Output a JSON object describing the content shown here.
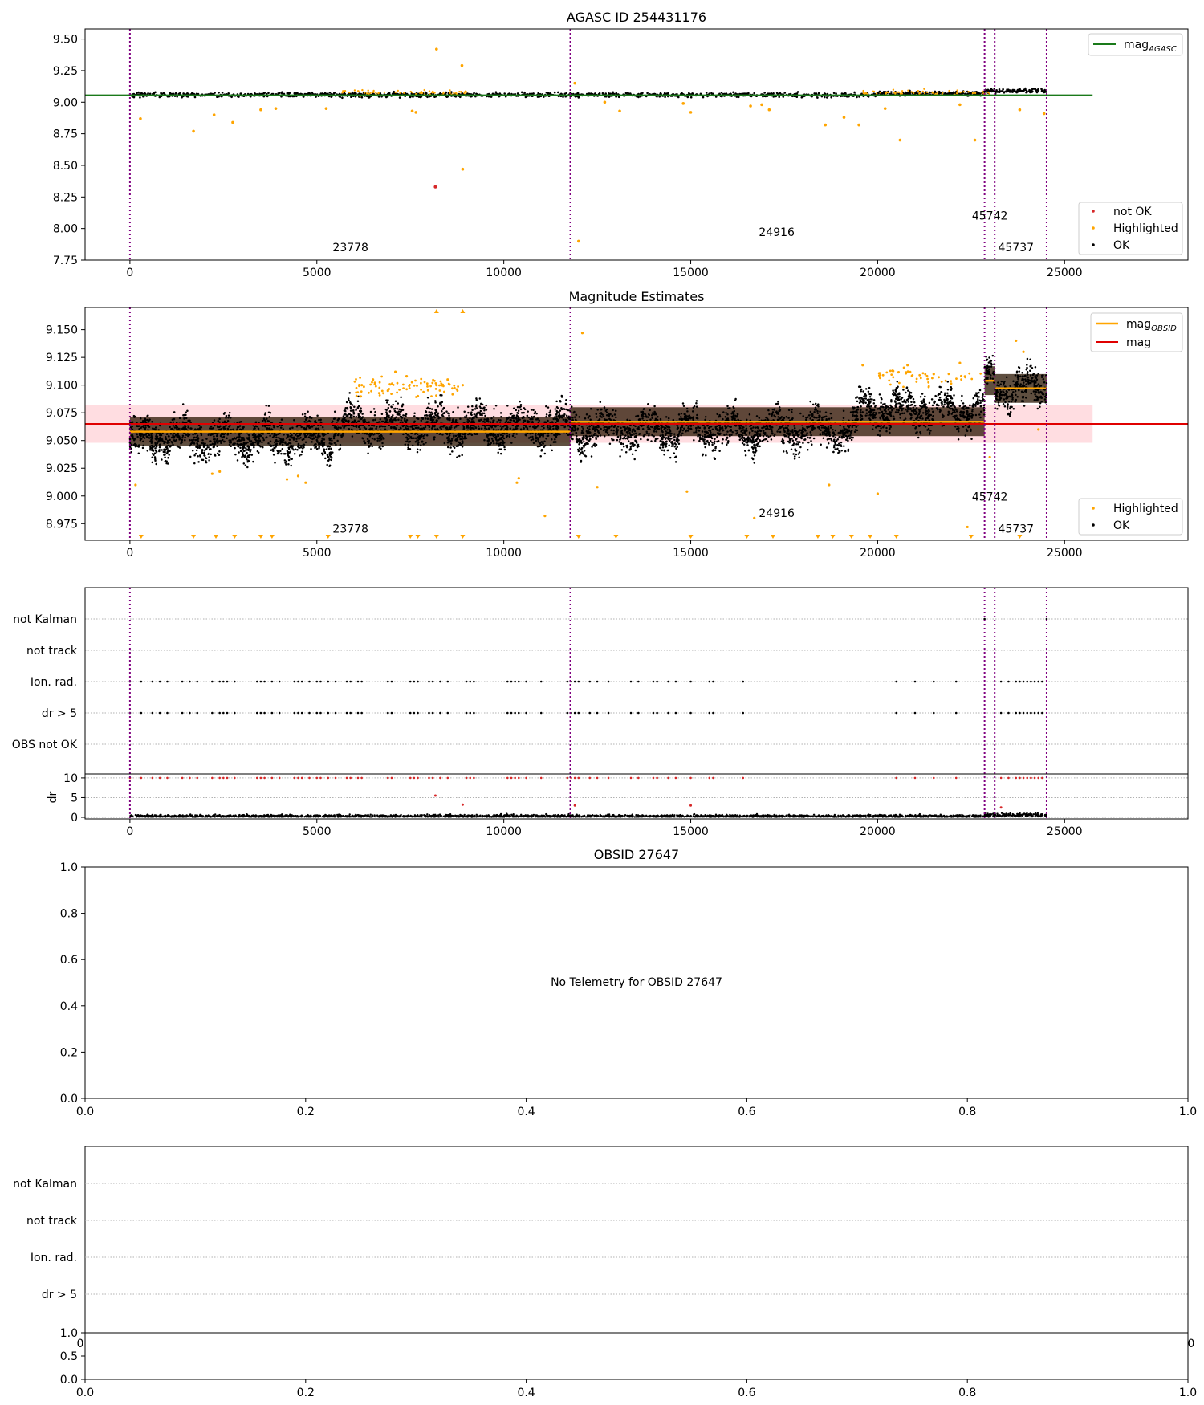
{
  "chart_data": [
    {
      "type": "scatter",
      "title": "AGASC ID 254431176",
      "x_ticks": [
        0,
        5000,
        10000,
        15000,
        20000,
        25000
      ],
      "y_ticks": [
        "7.75",
        "8.00",
        "8.25",
        "8.50",
        "8.75",
        "9.00",
        "9.25",
        "9.50"
      ],
      "xlim": [
        -1200,
        28300
      ],
      "ylim": [
        7.75,
        9.58
      ],
      "obs_boundaries": [
        0,
        11780,
        22860,
        23130,
        24520
      ],
      "obsid_labels": [
        {
          "text": "23778",
          "x": 5900,
          "y": 7.82
        },
        {
          "text": "24916",
          "x": 17300,
          "y": 7.94
        },
        {
          "text": "45742",
          "x": 23000,
          "y": 8.07
        },
        {
          "text": "45737",
          "x": 23700,
          "y": 7.82
        }
      ],
      "mag_agasc": 9.055,
      "series": [
        {
          "name": "not OK",
          "color": "#d62728",
          "x": [
            8170
          ],
          "y": [
            8.33
          ]
        },
        {
          "name": "Highlighted",
          "color": "#ffa500",
          "x": [
            280,
            1700,
            2250,
            2750,
            3500,
            3900,
            5250,
            7550,
            7650,
            8200,
            8880,
            8900,
            11900,
            12000,
            12700,
            13100,
            14800,
            15000,
            16600,
            16900,
            17100,
            18600,
            19100,
            19500,
            20200,
            20600,
            22200,
            22600,
            23800,
            24450
          ],
          "y": [
            8.87,
            8.77,
            8.9,
            8.84,
            8.94,
            8.95,
            8.95,
            8.93,
            8.92,
            9.42,
            9.29,
            8.47,
            9.15,
            7.9,
            9.0,
            8.93,
            8.99,
            8.92,
            8.97,
            8.98,
            8.94,
            8.82,
            8.88,
            8.82,
            8.95,
            8.7,
            8.98,
            8.7,
            8.94,
            8.91
          ]
        },
        {
          "name": "OK",
          "color": "#000000"
        }
      ],
      "legend": {
        "position": "lower-right",
        "items": [
          "not OK",
          "Highlighted",
          "OK"
        ]
      },
      "line_legend": {
        "position": "upper-right",
        "items": [
          "mag_AGASC"
        ]
      }
    },
    {
      "type": "scatter",
      "title": "Magnitude Estimates",
      "x_ticks": [
        0,
        5000,
        10000,
        15000,
        20000,
        25000
      ],
      "y_ticks": [
        "8.975",
        "9.000",
        "9.025",
        "9.050",
        "9.075",
        "9.100",
        "9.125",
        "9.150"
      ],
      "xlim": [
        -1200,
        28300
      ],
      "ylim": [
        8.96,
        9.17
      ],
      "obs_boundaries": [
        0,
        11780,
        22860,
        23130,
        24520
      ],
      "obsid_labels": [
        {
          "text": "23778",
          "x": 5900,
          "y": 8.967
        },
        {
          "text": "24916",
          "x": 17300,
          "y": 8.981
        },
        {
          "text": "45742",
          "x": 23000,
          "y": 8.996
        },
        {
          "text": "45737",
          "x": 23700,
          "y": 8.967
        }
      ],
      "mag": 9.065,
      "mag_band": [
        9.048,
        9.082
      ],
      "mag_obsid": [
        {
          "x0": 0,
          "x1": 11780,
          "y": 9.058
        },
        {
          "x0": 11780,
          "x1": 22860,
          "y": 9.067
        },
        {
          "x0": 22860,
          "x1": 23130,
          "y": 9.104
        },
        {
          "x0": 23130,
          "x1": 24520,
          "y": 9.097
        }
      ],
      "highlighted": {
        "x": [
          6200,
          6500,
          6900,
          7100,
          7400,
          7700,
          8200,
          8500,
          8900,
          12100,
          2200,
          4200,
          4500,
          4700,
          2400,
          10350,
          10400,
          11100,
          12500,
          14900,
          16700,
          18700,
          20000,
          22400,
          23000,
          24300,
          19600,
          20400,
          20800,
          21500,
          22200,
          23700,
          23900,
          150
        ],
        "y": [
          9.1,
          9.105,
          9.095,
          9.112,
          9.108,
          9.09,
          9.1,
          9.105,
          9.1,
          9.147,
          9.02,
          9.015,
          9.018,
          9.012,
          9.022,
          9.012,
          9.016,
          8.982,
          9.008,
          9.004,
          8.98,
          9.01,
          9.002,
          8.972,
          9.035,
          9.06,
          9.118,
          9.113,
          9.118,
          9.11,
          9.12,
          9.14,
          9.13,
          9.01
        ]
      },
      "markers_low_x": [
        300,
        1700,
        2300,
        2800,
        3500,
        3800,
        5300,
        7500,
        7700,
        8200,
        8900,
        12000,
        13000,
        15000,
        16500,
        17200,
        18400,
        18800,
        19300,
        19800,
        20500,
        22500,
        23800
      ],
      "markers_high_x": [
        8200,
        8900
      ],
      "legend": {
        "position": "lower-right",
        "items": [
          "Highlighted",
          "OK"
        ]
      },
      "line_legend": {
        "position": "upper-right",
        "items": [
          "mag_OBSID",
          "mag"
        ]
      }
    },
    {
      "type": "scatter",
      "title": "",
      "x_ticks": [
        0,
        5000,
        10000,
        15000,
        20000,
        25000
      ],
      "xlim": [
        -1200,
        28300
      ],
      "categories": [
        "not Kalman",
        "not track",
        "Ion. rad.",
        "dr > 5",
        "OBS not OK"
      ],
      "obs_boundaries": [
        0,
        11780,
        22860,
        23130,
        24520
      ],
      "flag_x": [
        0,
        300,
        600,
        800,
        1000,
        1400,
        1600,
        1800,
        2200,
        2400,
        2500,
        2600,
        2800,
        3400,
        3500,
        3600,
        3800,
        4000,
        4400,
        4500,
        4600,
        4800,
        5000,
        5100,
        5300,
        5500,
        5800,
        5900,
        6100,
        6200,
        6900,
        7000,
        7500,
        7600,
        7700,
        8000,
        8100,
        8300,
        8500,
        9000,
        9100,
        9200,
        10100,
        10200,
        10300,
        10400,
        10600,
        11000,
        11700,
        11800,
        11900,
        12000,
        12300,
        12500,
        12800,
        13400,
        13600,
        14000,
        14100,
        14400,
        14600,
        15000,
        15500,
        15600,
        16400,
        20500,
        21000,
        21500,
        22100,
        23300,
        23500,
        23700,
        23800,
        23900,
        24000,
        24100,
        24200,
        24300,
        24400
      ],
      "not_kalman_x": [
        22860,
        24520
      ],
      "dr": {
        "y_ticks": [
          "0",
          "5",
          "10"
        ],
        "ylabel": "dr",
        "ylim": [
          0,
          11
        ],
        "outliers": [
          {
            "x": 8170,
            "y": 5.5
          },
          {
            "x": 8900,
            "y": 3.2
          },
          {
            "x": 11900,
            "y": 3.0
          },
          {
            "x": 15000,
            "y": 3.0
          },
          {
            "x": 23300,
            "y": 2.5
          }
        ]
      }
    },
    {
      "type": "scatter",
      "title": "OBSID 27647",
      "annotation": "No Telemetry for OBSID 27647",
      "x_ticks": [
        "0.0",
        "0.2",
        "0.4",
        "0.6",
        "0.8",
        "1.0"
      ],
      "y_ticks": [
        "0.0",
        "0.2",
        "0.4",
        "0.6",
        "0.8",
        "1.0"
      ],
      "xlim": [
        0,
        1
      ],
      "ylim": [
        0,
        1
      ]
    },
    {
      "type": "scatter",
      "title": "",
      "categories": [
        "not Kalman",
        "not track",
        "Ion. rad.",
        "dr > 5"
      ],
      "x_ticks": [
        "0.0",
        "0.2",
        "0.4",
        "0.6",
        "0.8",
        "1.0"
      ],
      "y_ticks": [
        "0.0",
        "0.5",
        "1.0"
      ],
      "corner_labels": [
        "0",
        "0"
      ],
      "xlim": [
        0,
        1
      ],
      "ylim": [
        0,
        1
      ]
    }
  ]
}
